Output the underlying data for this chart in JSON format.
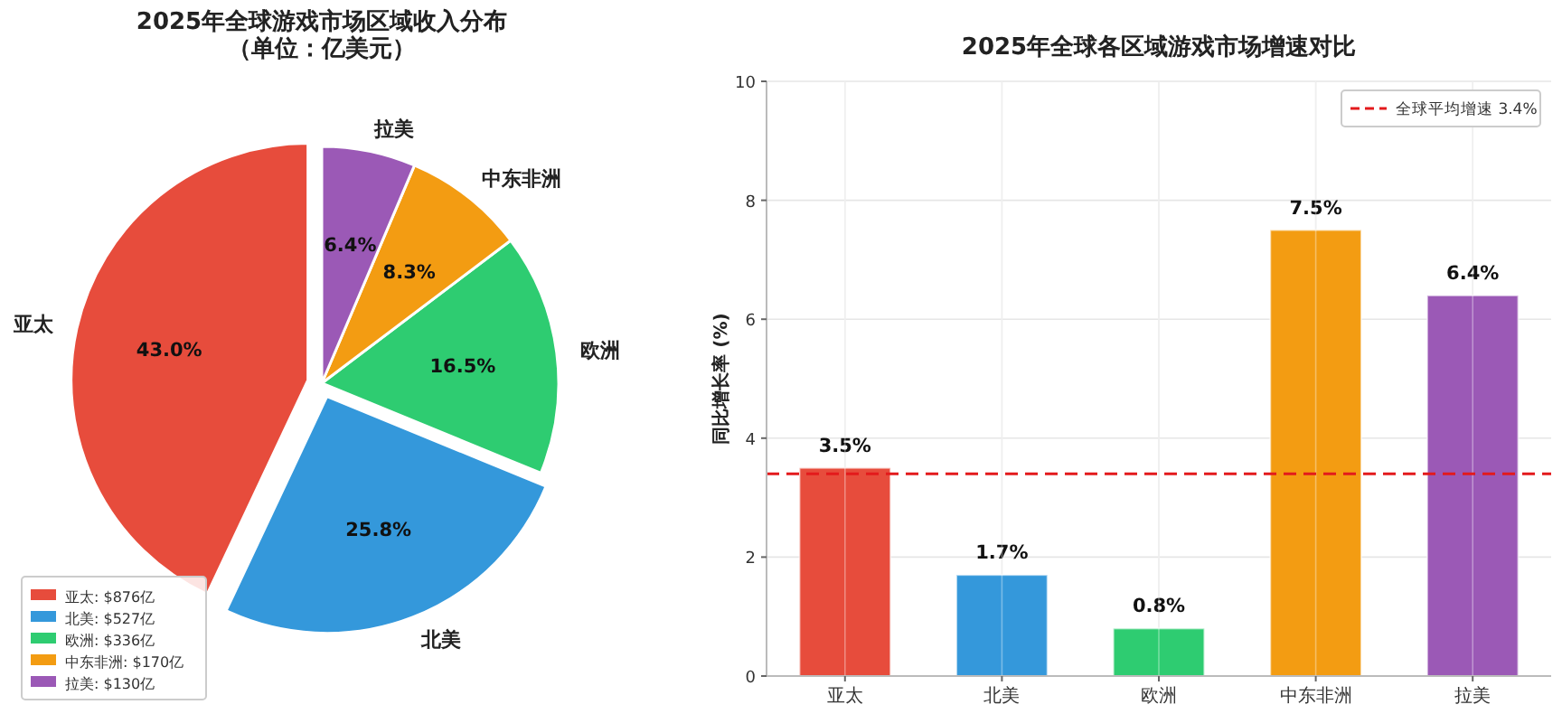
{
  "chart_data": [
    {
      "type": "pie",
      "title": "2025年全球游戏市场区域收入分布",
      "subtitle": "（单位：亿美元）",
      "categories": [
        "亚太",
        "北美",
        "欧洲",
        "中东非洲",
        "拉美"
      ],
      "values": [
        43.0,
        25.8,
        16.5,
        8.3,
        6.4
      ],
      "colors": [
        "#e74c3c",
        "#3498db",
        "#2ecc71",
        "#f39c12",
        "#9b59b6"
      ],
      "value_labels": [
        "43.0%",
        "25.8%",
        "16.5%",
        "8.3%",
        "6.4%"
      ],
      "annotations": [
        "亚太: $876亿",
        "北美: $527亿",
        "欧洲: $336亿",
        "中东非洲: $170亿",
        "拉美: $130亿"
      ]
    },
    {
      "type": "bar",
      "title": "2025年全球各区域游戏市场增速对比",
      "ylabel": "同比增长率 (%)",
      "categories": [
        "亚太",
        "北美",
        "欧洲",
        "中东非洲",
        "拉美"
      ],
      "values": [
        3.5,
        1.7,
        0.8,
        7.5,
        6.4
      ],
      "colors": [
        "#e74c3c",
        "#3498db",
        "#2ecc71",
        "#f39c12",
        "#9b59b6"
      ],
      "value_labels": [
        "3.5%",
        "1.7%",
        "0.8%",
        "7.5%",
        "6.4%"
      ],
      "ylim": [
        0,
        10
      ],
      "yticks": [
        0,
        2,
        4,
        6,
        8,
        10
      ],
      "grid": true,
      "legend": "top right",
      "ref_lines": [
        {
          "axis": "y",
          "value": 3.4,
          "label": "全球平均增速 3.4%",
          "color": "#e31a1c",
          "line_style": "dashed"
        }
      ]
    }
  ]
}
